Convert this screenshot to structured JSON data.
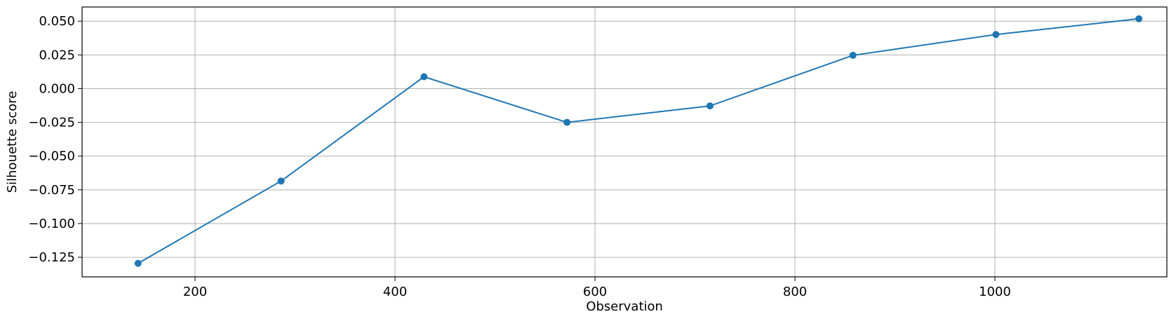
{
  "chart_data": {
    "type": "line",
    "title": "",
    "xlabel": "Observation",
    "ylabel": "Silhouette score",
    "xlim": [
      87,
      1172
    ],
    "ylim": [
      -0.1395,
      0.0605
    ],
    "xticks": [
      200,
      400,
      600,
      800,
      1000
    ],
    "xtick_labels": [
      "200",
      "400",
      "600",
      "800",
      "1000"
    ],
    "yticks": [
      -0.125,
      -0.1,
      -0.075,
      -0.05,
      -0.025,
      0.0,
      0.025,
      0.05
    ],
    "ytick_labels": [
      "−0.125",
      "−0.100",
      "−0.075",
      "−0.050",
      "−0.025",
      "0.000",
      "0.025",
      "0.050"
    ],
    "grid": true,
    "legend": "none",
    "series": [
      {
        "color": "#1f77b4",
        "marker": "circle",
        "x": [
          143,
          286,
          429,
          572,
          715,
          858,
          1001,
          1144
        ],
        "y": [
          -0.1295,
          -0.0685,
          0.0088,
          -0.025,
          -0.0128,
          0.0247,
          0.0401,
          0.0518
        ]
      }
    ]
  }
}
